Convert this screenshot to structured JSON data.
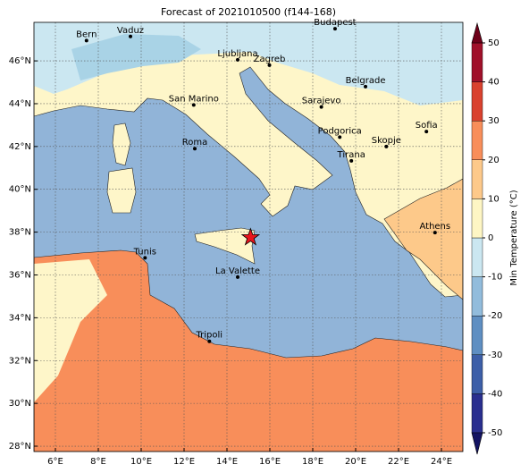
{
  "title": "Forecast of 2021010500 (f144-168)",
  "map": {
    "xlim": [
      5,
      25
    ],
    "ylim": [
      27.75,
      47.8
    ],
    "xticks": [
      {
        "value": 6,
        "label": "6°E"
      },
      {
        "value": 8,
        "label": "8°E"
      },
      {
        "value": 10,
        "label": "10°E"
      },
      {
        "value": 12,
        "label": "12°E"
      },
      {
        "value": 14,
        "label": "14°E"
      },
      {
        "value": 16,
        "label": "16°E"
      },
      {
        "value": 18,
        "label": "18°E"
      },
      {
        "value": 20,
        "label": "20°E"
      },
      {
        "value": 22,
        "label": "22°E"
      },
      {
        "value": 24,
        "label": "24°E"
      }
    ],
    "yticks": [
      {
        "value": 28,
        "label": "28°N"
      },
      {
        "value": 30,
        "label": "30°N"
      },
      {
        "value": 32,
        "label": "32°N"
      },
      {
        "value": 34,
        "label": "34°N"
      },
      {
        "value": 36,
        "label": "36°N"
      },
      {
        "value": 38,
        "label": "38°N"
      },
      {
        "value": 40,
        "label": "40°N"
      },
      {
        "value": 42,
        "label": "42°N"
      },
      {
        "value": 44,
        "label": "44°N"
      },
      {
        "value": 46,
        "label": "46°N"
      }
    ],
    "grid": true,
    "cities": [
      {
        "name": "Bern",
        "lon": 7.45,
        "lat": 46.95
      },
      {
        "name": "Vaduz",
        "lon": 9.5,
        "lat": 47.14
      },
      {
        "name": "Budapest",
        "lon": 19.04,
        "lat": 47.5
      },
      {
        "name": "Ljubljana",
        "lon": 14.5,
        "lat": 46.05
      },
      {
        "name": "Zagreb",
        "lon": 15.98,
        "lat": 45.8
      },
      {
        "name": "Belgrade",
        "lon": 20.46,
        "lat": 44.8
      },
      {
        "name": "San Marino",
        "lon": 12.45,
        "lat": 43.94
      },
      {
        "name": "Sarajevo",
        "lon": 18.4,
        "lat": 43.85
      },
      {
        "name": "Sofia",
        "lon": 23.3,
        "lat": 42.7
      },
      {
        "name": "Podgorica",
        "lon": 19.26,
        "lat": 42.44
      },
      {
        "name": "Skopje",
        "lon": 21.43,
        "lat": 42.0
      },
      {
        "name": "Roma",
        "lon": 12.5,
        "lat": 41.9
      },
      {
        "name": "Tirana",
        "lon": 19.8,
        "lat": 41.33
      },
      {
        "name": "Athens",
        "lon": 23.7,
        "lat": 37.98
      },
      {
        "name": "Tunis",
        "lon": 10.18,
        "lat": 36.8
      },
      {
        "name": "La Valette",
        "lon": 14.5,
        "lat": 35.9
      },
      {
        "name": "Tripoli",
        "lon": 13.18,
        "lat": 32.9
      }
    ],
    "marker": {
      "lon": 15.1,
      "lat": 37.75,
      "color": "#e8141c"
    }
  },
  "colorbar": {
    "label": "Min Temperature (°C)",
    "ticks": [
      -50,
      -40,
      -30,
      -20,
      -10,
      0,
      10,
      20,
      30,
      40,
      50
    ],
    "colors": [
      "#2a2f8f",
      "#3d5fa8",
      "#5f8fc2",
      "#92bcdc",
      "#cbe7f1",
      "#fef6c4",
      "#fdc98a",
      "#f88e5a",
      "#d9412e",
      "#a0102a"
    ],
    "under": "#141463",
    "over": "#6e0019"
  }
}
